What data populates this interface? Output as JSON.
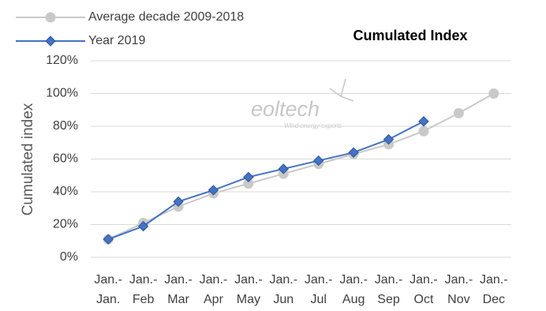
{
  "chart_data": {
    "type": "line",
    "title": "Cumulated Index",
    "y_label": "Cumulated index",
    "watermark": {
      "name": "eoltech",
      "tagline": "Wind energy experts"
    },
    "categories": [
      [
        "Jan.-",
        "Jan."
      ],
      [
        "Jan.-",
        "Feb"
      ],
      [
        "Jan.-",
        "Mar"
      ],
      [
        "Jan.-",
        "Apr"
      ],
      [
        "Jan.-",
        "May"
      ],
      [
        "Jan.-",
        "Jun"
      ],
      [
        "Jan.-",
        "Jul"
      ],
      [
        "Jan.-",
        "Aug"
      ],
      [
        "Jan.-",
        "Sep"
      ],
      [
        "Jan.-",
        "Oct"
      ],
      [
        "Jan.-",
        "Nov"
      ],
      [
        "Jan.-",
        "Dec"
      ]
    ],
    "series": [
      {
        "name": "Average decade 2009-2018",
        "color": "#c9c9c9",
        "marker": "circle",
        "values": [
          11,
          21,
          31,
          39,
          45,
          51,
          57,
          63,
          69,
          77,
          88,
          100
        ]
      },
      {
        "name": "Year 2019",
        "color": "#4472c4",
        "marker": "diamond",
        "values": [
          11,
          19,
          34,
          41,
          49,
          54,
          59,
          64,
          72,
          83,
          null,
          null
        ]
      }
    ],
    "ylim": [
      0,
      120
    ],
    "yticks": [
      {
        "value": 0,
        "label": "0%"
      },
      {
        "value": 20,
        "label": "20%"
      },
      {
        "value": 40,
        "label": "40%"
      },
      {
        "value": 60,
        "label": "60%"
      },
      {
        "value": 80,
        "label": "80%"
      },
      {
        "value": 100,
        "label": "100%"
      },
      {
        "value": 120,
        "label": "120%"
      }
    ],
    "grid": true
  }
}
